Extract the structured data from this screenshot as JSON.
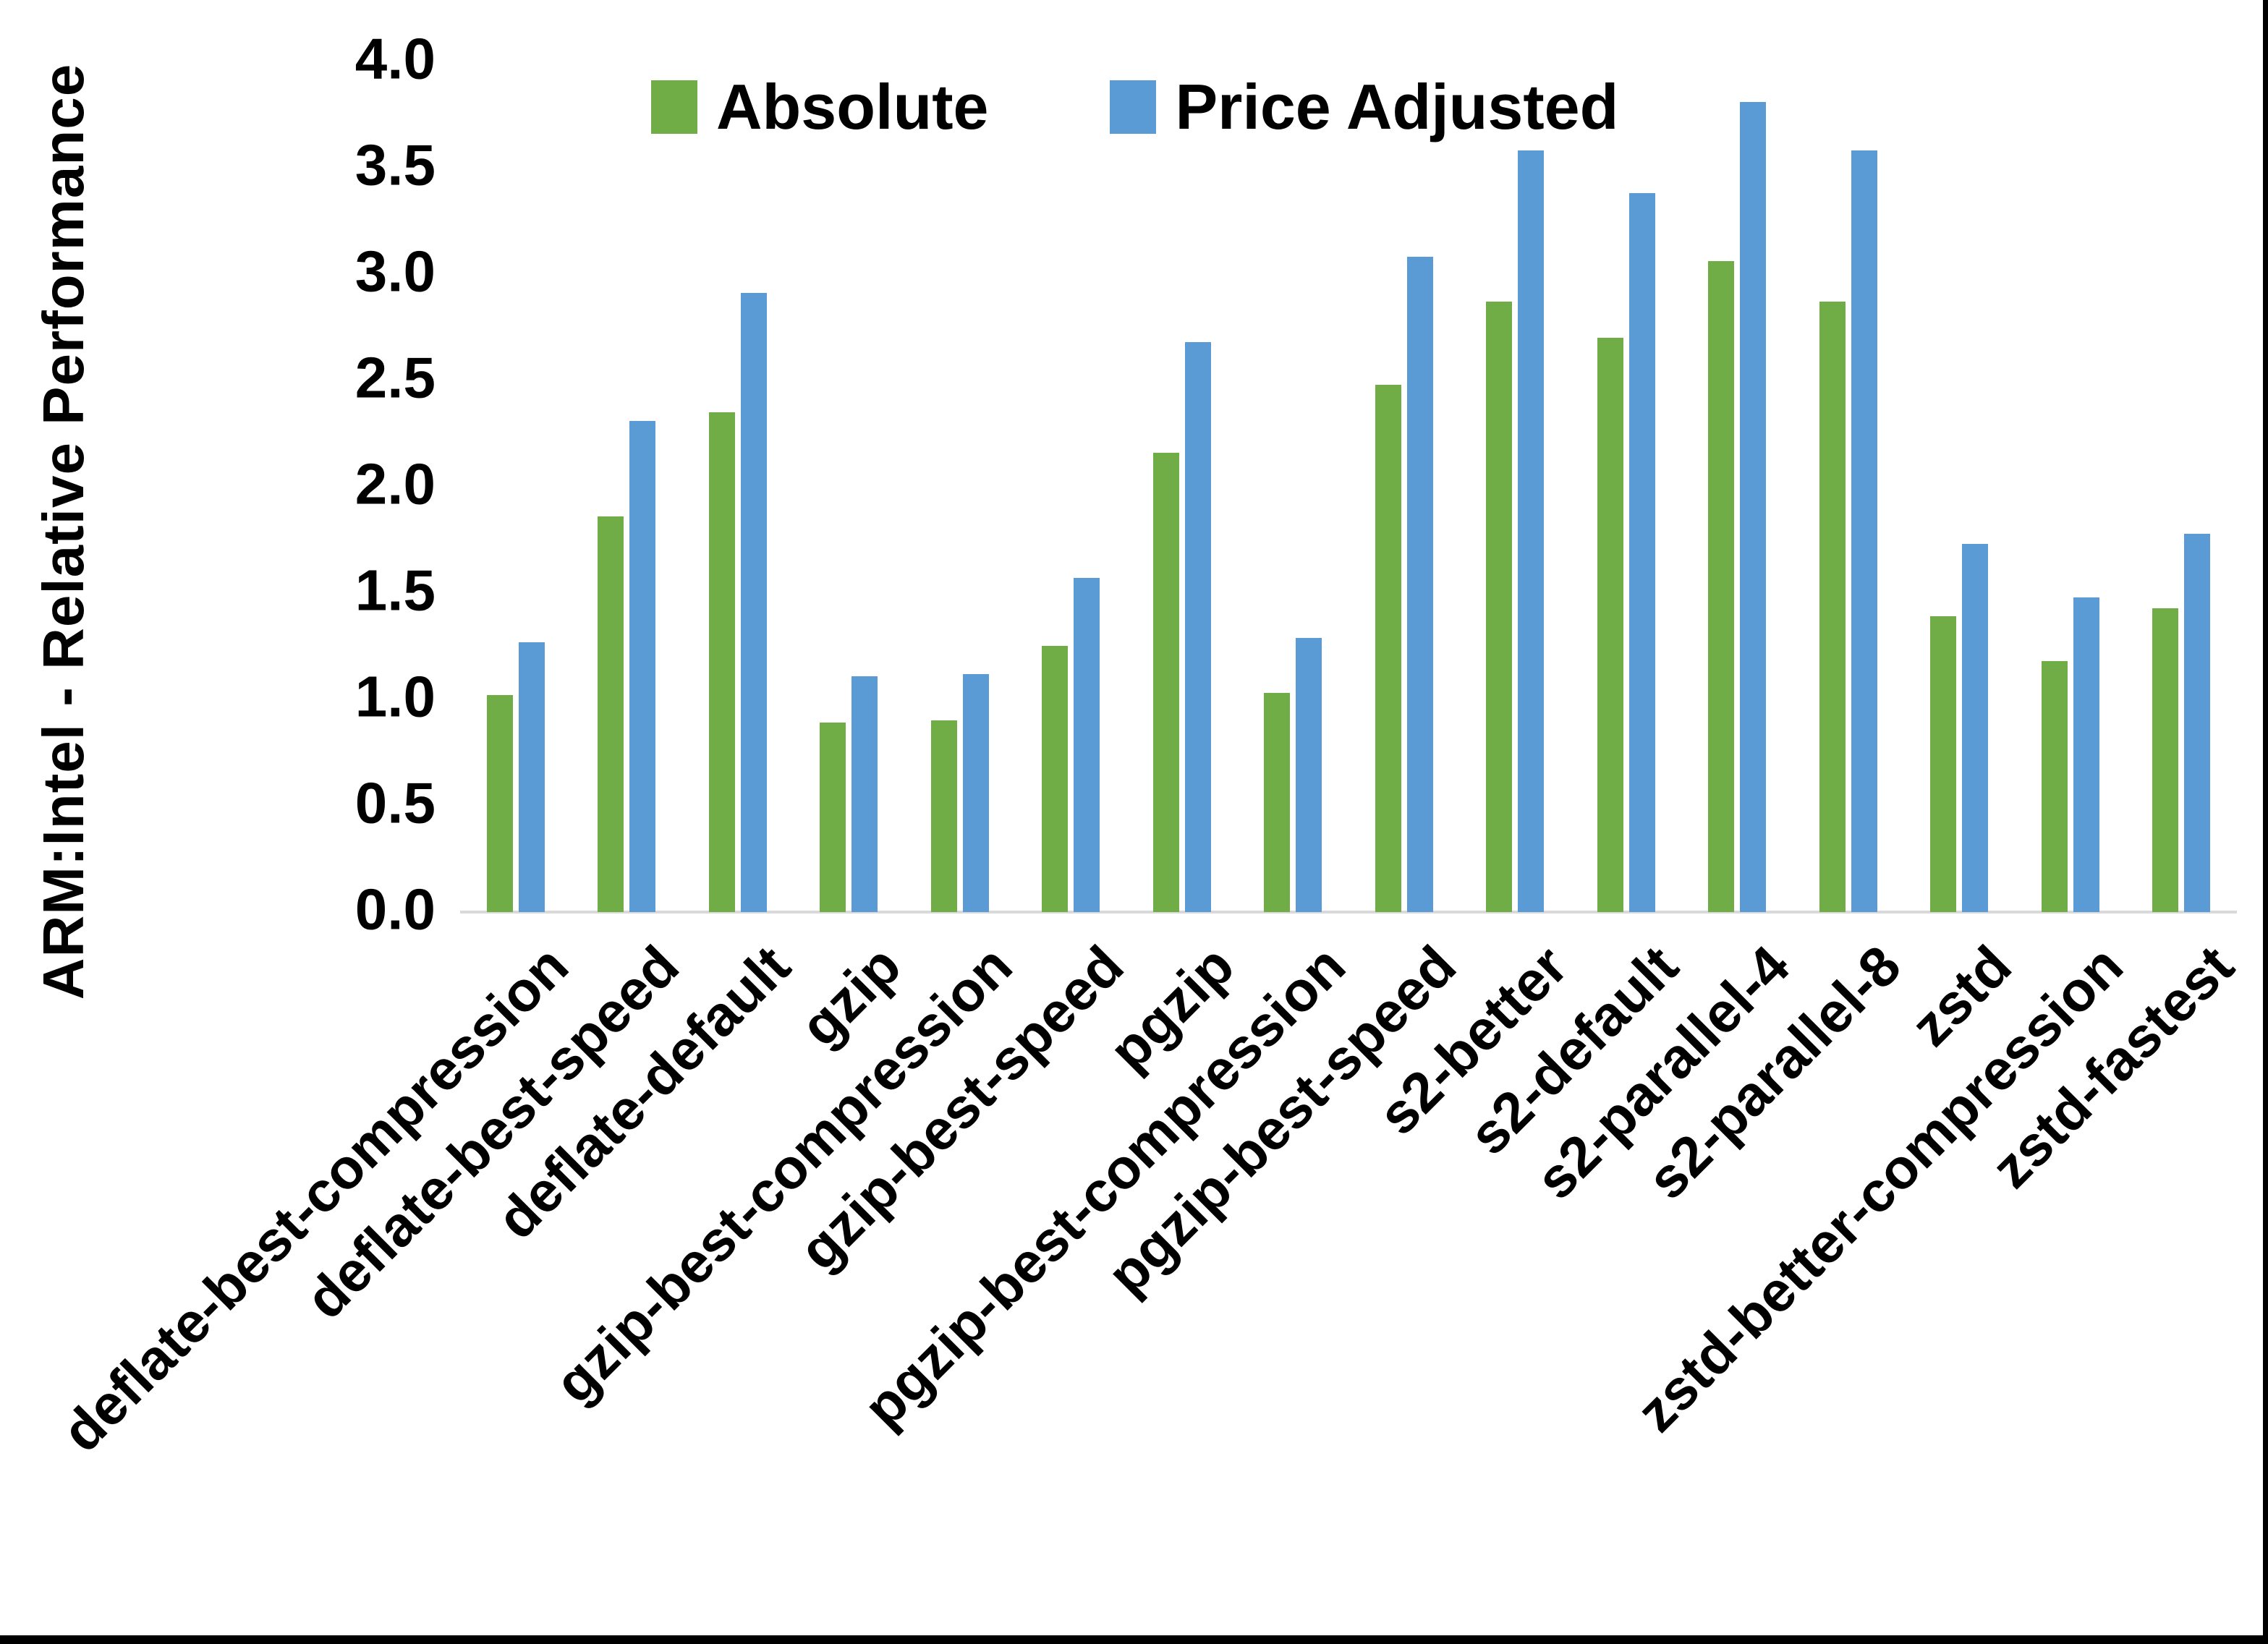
{
  "frame": {
    "background": "#ffffff",
    "edge_border_color": "#000000"
  },
  "chart_data": {
    "type": "bar",
    "title": "",
    "xlabel": "",
    "ylabel": "ARM:Intel - Relative Performance",
    "ylim": [
      0.0,
      4.0
    ],
    "ytick_interval": 0.5,
    "ytick_labels": [
      "0.0",
      "0.5",
      "1.0",
      "1.5",
      "2.0",
      "2.5",
      "3.0",
      "3.5",
      "4.0"
    ],
    "grid": false,
    "legend_position": "top",
    "axis_line_color": "#D9D9D9",
    "text_color": "#000000",
    "categories": [
      "deflate-best-compression",
      "deflate-best-speed",
      "deflate-default",
      "gzip",
      "gzip-best-compression",
      "gzip-best-speed",
      "pgzip",
      "pgzip-best-compression",
      "pgzip-best-speed",
      "s2-better",
      "s2-default",
      "s2-parallel-4",
      "s2-parallel-8",
      "zstd",
      "zstd-better-compression",
      "zstd-fastest"
    ],
    "series": [
      {
        "name": "Absolute",
        "color": "#70AD47",
        "values": [
          1.02,
          1.86,
          2.35,
          0.89,
          0.9,
          1.25,
          2.16,
          1.03,
          2.48,
          2.87,
          2.7,
          3.06,
          2.87,
          1.39,
          1.18,
          1.43
        ]
      },
      {
        "name": "Price Adjusted",
        "color": "#5B9BD5",
        "values": [
          1.27,
          2.31,
          2.91,
          1.11,
          1.12,
          1.57,
          2.68,
          1.29,
          3.08,
          3.58,
          3.38,
          3.81,
          3.58,
          1.73,
          1.48,
          1.78
        ]
      }
    ]
  }
}
